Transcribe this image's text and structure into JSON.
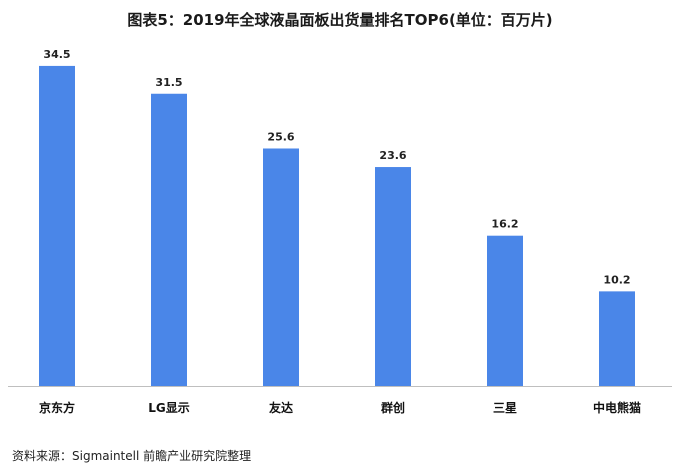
{
  "chart_data": {
    "type": "bar",
    "title": "图表5：2019年全球液晶面板出货量排名TOP6(单位：百万片)",
    "categories": [
      "京东方",
      "LG显示",
      "友达",
      "群创",
      "三星",
      "中电熊猫"
    ],
    "values": [
      34.5,
      31.5,
      25.6,
      23.6,
      16.2,
      10.2
    ],
    "xlabel": "",
    "ylabel": "",
    "ylim": [
      0,
      36
    ],
    "grid": false,
    "legend": "none",
    "bar_color": "#4a86e8",
    "axis_color": "#bfbfbf"
  },
  "source_text": "资料来源：Sigmaintell 前瞻产业研究院整理"
}
